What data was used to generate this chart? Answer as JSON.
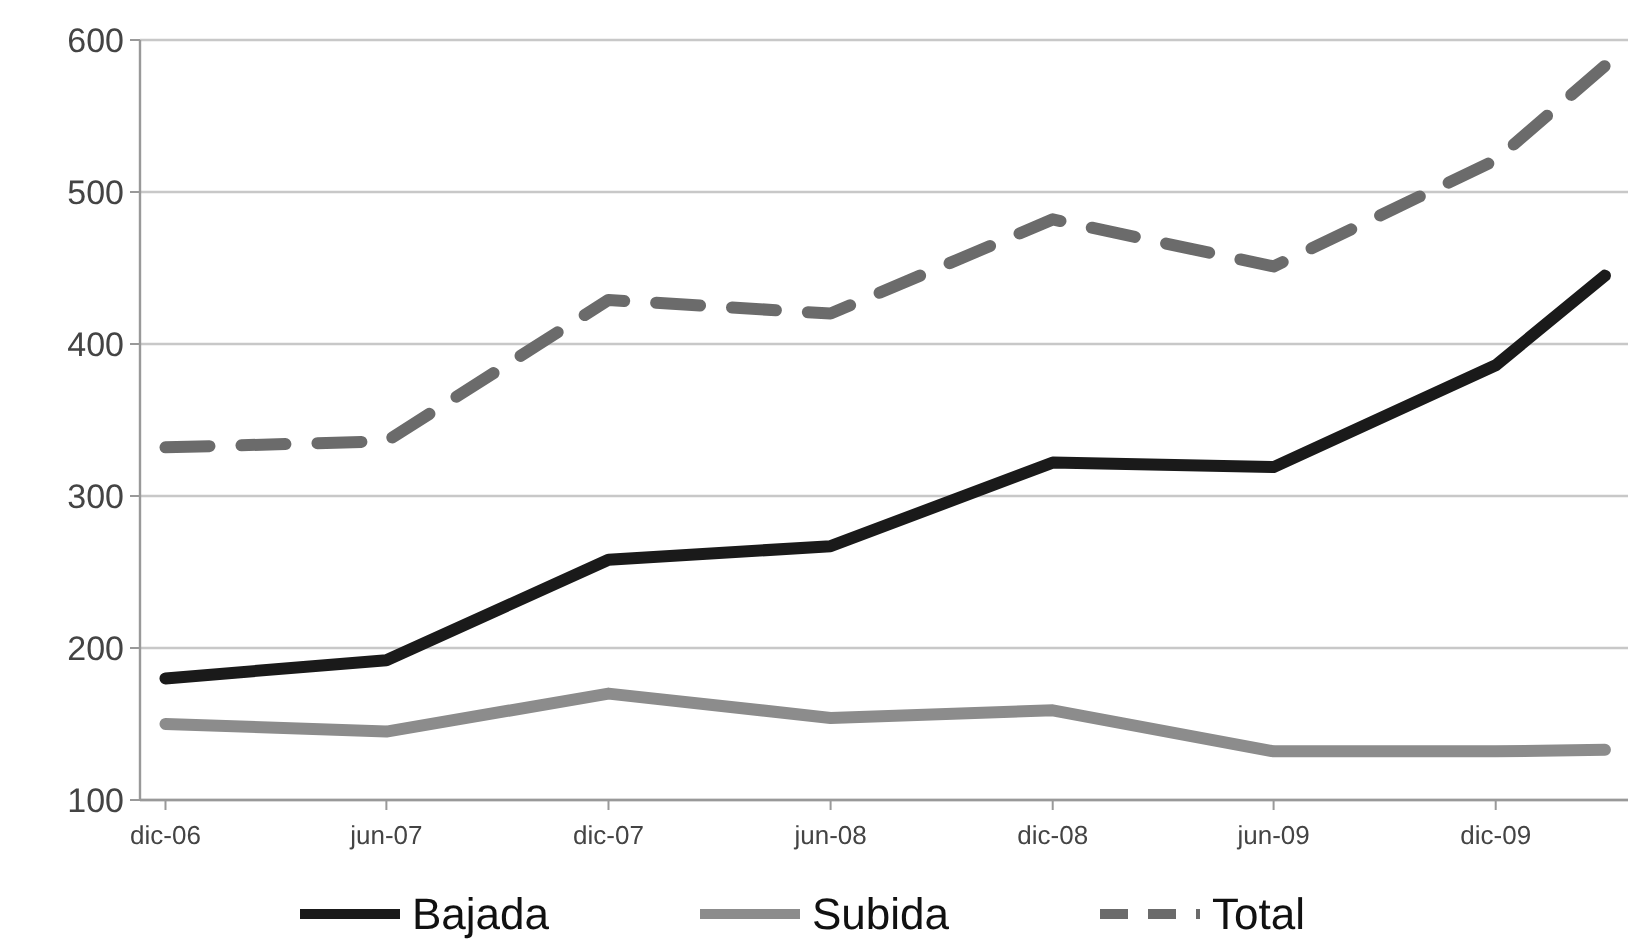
{
  "chart_data": {
    "type": "line",
    "x": [
      "2006-12",
      "2007-06",
      "2007-12",
      "2008-06",
      "2008-12",
      "2009-06",
      "2009-12",
      "2010-03"
    ],
    "xlim": [
      "2006-11-10",
      "2010-03-20"
    ],
    "xticks": [
      {
        "value": "2006-12",
        "label": "dic-06"
      },
      {
        "value": "2007-06",
        "label": "jun-07"
      },
      {
        "value": "2007-12",
        "label": "dic-07"
      },
      {
        "value": "2008-06",
        "label": "jun-08"
      },
      {
        "value": "2008-12",
        "label": "dic-08"
      },
      {
        "value": "2009-06",
        "label": "jun-09"
      },
      {
        "value": "2009-12",
        "label": "dic-09"
      }
    ],
    "ylim": [
      100,
      600
    ],
    "yticks": [
      100,
      200,
      300,
      400,
      500,
      600
    ],
    "grid": "y",
    "legend": "bottom",
    "series": [
      {
        "name": "Bajada",
        "color": "#1a1a1a",
        "values": [
          180,
          192,
          258,
          267,
          322,
          319,
          386,
          445
        ]
      },
      {
        "name": "Subida",
        "color": "#8c8c8c",
        "values": [
          150,
          145,
          170,
          154,
          159,
          132,
          132,
          133
        ]
      },
      {
        "name": "Total",
        "color": "#6b6b6b",
        "line_style": "dashed",
        "values": [
          332,
          336,
          429,
          420,
          482,
          451,
          521,
          583
        ]
      }
    ]
  }
}
